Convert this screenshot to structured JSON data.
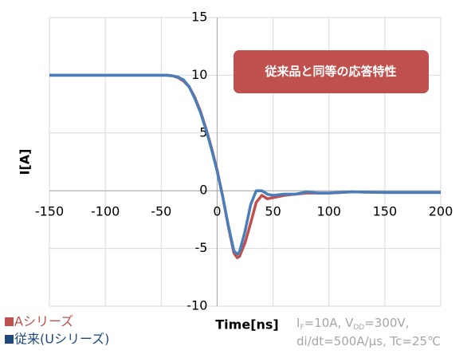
{
  "chart_data": {
    "type": "line",
    "x": [
      -150,
      -140,
      -130,
      -120,
      -110,
      -100,
      -90,
      -80,
      -70,
      -60,
      -50,
      -45,
      -40,
      -35,
      -30,
      -25,
      -20,
      -15,
      -10,
      -5,
      0,
      5,
      10,
      15,
      18,
      20,
      25,
      30,
      35,
      40,
      45,
      50,
      60,
      70,
      80,
      90,
      100,
      120,
      150,
      200
    ],
    "series": [
      {
        "name": "Aシリーズ",
        "color": "#c0504d",
        "values": [
          10,
          10,
          10,
          10,
          10,
          10,
          10,
          10,
          10,
          10,
          10,
          10,
          9.95,
          9.8,
          9.5,
          9,
          8.1,
          6.9,
          5.4,
          3.7,
          1.8,
          -0.5,
          -3.1,
          -5.4,
          -5.8,
          -5.7,
          -4.5,
          -2.8,
          -1,
          -0.4,
          -0.7,
          -0.6,
          -0.4,
          -0.3,
          -0.2,
          -0.2,
          -0.2,
          -0.1,
          -0.15,
          -0.15
        ]
      },
      {
        "name": "従来(Uシリーズ)",
        "color": "#1f497d",
        "line_color": "#4a7ebb",
        "values": [
          10,
          10,
          10,
          10,
          10,
          10,
          10,
          10,
          10,
          10,
          10,
          10,
          9.95,
          9.85,
          9.6,
          9,
          8,
          6.8,
          5.3,
          3.6,
          1.7,
          -0.5,
          -3,
          -5.2,
          -5.5,
          -5.3,
          -3.5,
          -1.2,
          0,
          0,
          -0.3,
          -0.4,
          -0.3,
          -0.3,
          -0.1,
          -0.2,
          -0.2,
          -0.1,
          -0.15,
          -0.15
        ]
      }
    ],
    "xlim": [
      -150,
      200
    ],
    "xticks": [
      -150,
      -100,
      -50,
      0,
      50,
      100,
      150,
      200
    ],
    "ylim": [
      -10,
      15
    ],
    "yticks": [
      -10,
      -5,
      0,
      5,
      10,
      15
    ],
    "grid": true,
    "xlabel": "Time[ns]",
    "ylabel": "I[A]",
    "annotation": "従来品と同等の応答特性",
    "annotation_color": "#c0504d",
    "legend": "bottom-left",
    "note": [
      [
        {
          "text": "I"
        },
        {
          "text": "F",
          "sub": true
        },
        {
          "text": "=10A, V"
        },
        {
          "text": "DD",
          "sub": true
        },
        {
          "text": "=300V,"
        }
      ],
      [
        {
          "text": "di/dt=500A/μs, Tc=25℃"
        }
      ]
    ]
  }
}
